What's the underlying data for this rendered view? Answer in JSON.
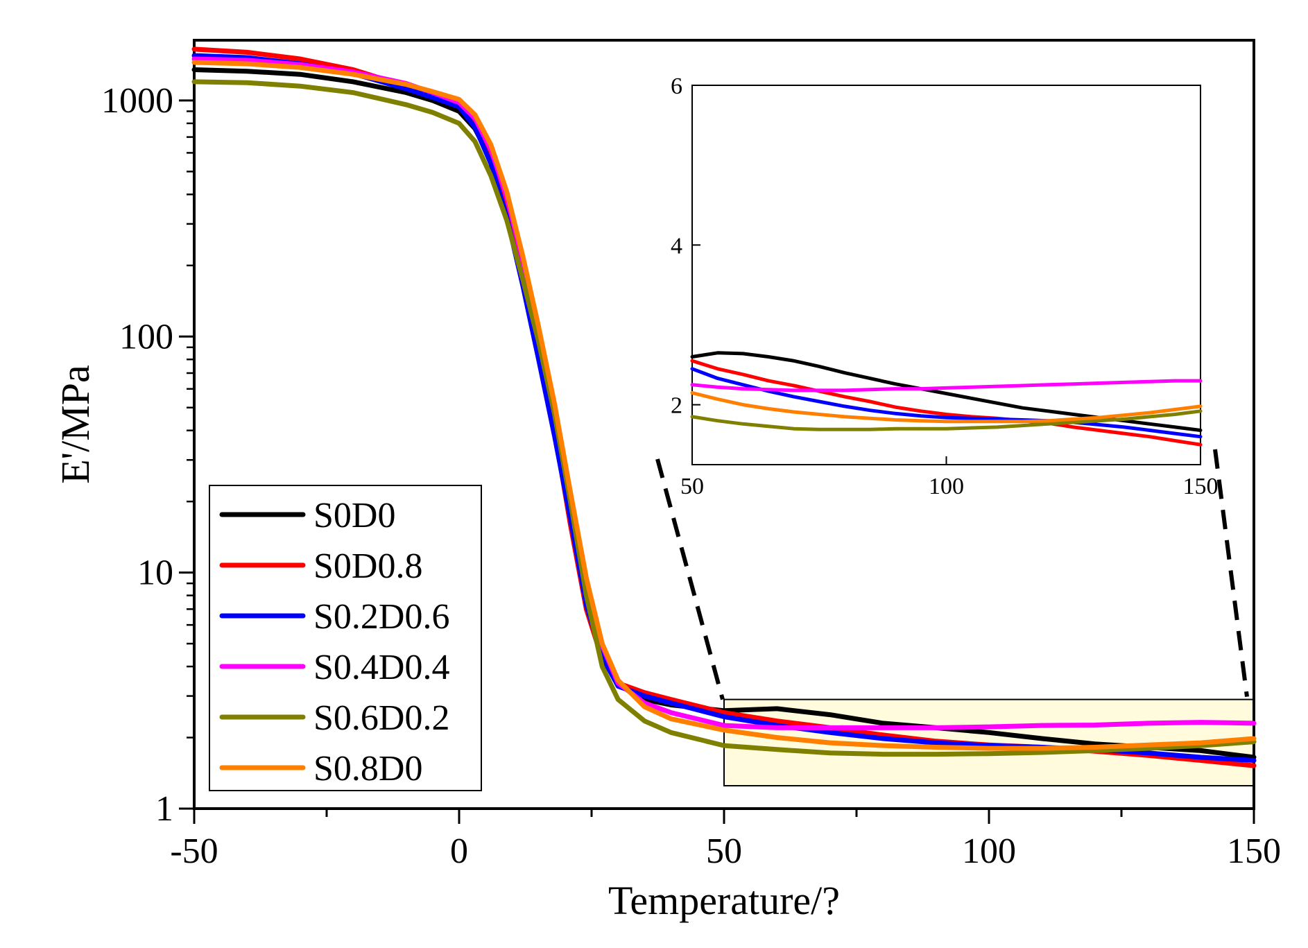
{
  "chart_data": [
    {
      "type": "line",
      "role": "main",
      "xlabel": "Temperature/?",
      "ylabel": "E'/MPa",
      "xlim": [
        -50,
        150
      ],
      "ylim": [
        1,
        1800
      ],
      "yscale": "log",
      "xticks": [
        -50,
        0,
        50,
        100,
        150
      ],
      "xtick_labels": [
        "-50",
        "0",
        "50",
        "100",
        "150"
      ],
      "yticks": [
        1,
        10,
        100,
        1000
      ],
      "ytick_labels": [
        "1",
        "10",
        "100",
        "1000"
      ],
      "legend_position": "bottom-left",
      "zoom_region": {
        "x": [
          50,
          150
        ],
        "y": [
          1.25,
          2.9
        ]
      },
      "x": [
        -50,
        -40,
        -30,
        -20,
        -10,
        -5,
        0,
        3,
        6,
        9,
        12,
        15,
        18,
        21,
        24,
        27,
        30,
        35,
        40,
        50,
        60,
        70,
        80,
        90,
        100,
        110,
        120,
        130,
        140,
        150
      ],
      "series": [
        {
          "name": "S0D0",
          "color": "#000000",
          "values": [
            1350,
            1330,
            1290,
            1200,
            1080,
            1000,
            900,
            760,
            560,
            350,
            190,
            95,
            45,
            20,
            8.5,
            4.6,
            3.4,
            2.9,
            2.75,
            2.6,
            2.65,
            2.5,
            2.3,
            2.2,
            2.1,
            1.98,
            1.88,
            1.82,
            1.76,
            1.65
          ]
        },
        {
          "name": "S0D0.8",
          "color": "#ff0000",
          "values": [
            1650,
            1600,
            1500,
            1350,
            1150,
            1050,
            950,
            800,
            580,
            360,
            190,
            90,
            40,
            16,
            7.0,
            4.3,
            3.4,
            3.1,
            2.9,
            2.55,
            2.35,
            2.2,
            2.05,
            1.93,
            1.86,
            1.82,
            1.75,
            1.68,
            1.6,
            1.52
          ]
        },
        {
          "name": "S0.2D0.6",
          "color": "#0000ff",
          "values": [
            1550,
            1520,
            1430,
            1300,
            1120,
            1030,
            940,
            770,
            540,
            320,
            165,
            80,
            38,
            17,
            7.3,
            4.4,
            3.3,
            3.0,
            2.8,
            2.45,
            2.25,
            2.1,
            1.98,
            1.9,
            1.85,
            1.82,
            1.78,
            1.72,
            1.65,
            1.6
          ]
        },
        {
          "name": "S0.4D0.4",
          "color": "#ff00ff",
          "values": [
            1500,
            1480,
            1420,
            1320,
            1180,
            1080,
            980,
            840,
            620,
            390,
            210,
            105,
            50,
            21,
            9.0,
            4.9,
            3.4,
            2.8,
            2.55,
            2.25,
            2.2,
            2.2,
            2.2,
            2.2,
            2.22,
            2.25,
            2.26,
            2.3,
            2.32,
            2.3
          ]
        },
        {
          "name": "S0.6D0.2",
          "color": "#808000",
          "values": [
            1200,
            1190,
            1150,
            1080,
            960,
            890,
            800,
            670,
            480,
            310,
            175,
            95,
            47,
            20,
            8.0,
            4.0,
            2.9,
            2.35,
            2.1,
            1.85,
            1.78,
            1.72,
            1.7,
            1.7,
            1.71,
            1.73,
            1.76,
            1.8,
            1.85,
            1.92
          ]
        },
        {
          "name": "S0.8D0",
          "color": "#ff8000",
          "values": [
            1450,
            1430,
            1380,
            1290,
            1170,
            1090,
            1010,
            870,
            650,
            410,
            220,
            110,
            52,
            22,
            9.5,
            5.0,
            3.5,
            2.7,
            2.4,
            2.15,
            2.0,
            1.9,
            1.85,
            1.82,
            1.8,
            1.8,
            1.82,
            1.86,
            1.9,
            1.98
          ]
        }
      ]
    },
    {
      "type": "line",
      "role": "inset",
      "xlim": [
        50,
        150
      ],
      "ylim": [
        1.25,
        6
      ],
      "xticks": [
        50,
        100,
        150
      ],
      "xtick_labels": [
        "50",
        "100",
        "150"
      ],
      "yticks": [
        2,
        4,
        6
      ],
      "ytick_labels": [
        "2",
        "4",
        "6"
      ],
      "x": [
        50,
        55,
        60,
        65,
        70,
        75,
        80,
        85,
        90,
        95,
        100,
        105,
        110,
        115,
        120,
        125,
        130,
        135,
        140,
        145,
        150
      ],
      "series": [
        {
          "name": "S0D0",
          "color": "#000000",
          "values": [
            2.6,
            2.65,
            2.64,
            2.6,
            2.55,
            2.48,
            2.4,
            2.33,
            2.26,
            2.2,
            2.14,
            2.08,
            2.02,
            1.96,
            1.92,
            1.88,
            1.84,
            1.8,
            1.76,
            1.72,
            1.68
          ]
        },
        {
          "name": "S0D0.8",
          "color": "#ff0000",
          "values": [
            2.55,
            2.45,
            2.38,
            2.3,
            2.24,
            2.17,
            2.1,
            2.04,
            1.97,
            1.92,
            1.88,
            1.85,
            1.83,
            1.8,
            1.77,
            1.72,
            1.68,
            1.64,
            1.6,
            1.55,
            1.5
          ]
        },
        {
          "name": "S0.2D0.6",
          "color": "#0000ff",
          "values": [
            2.45,
            2.33,
            2.25,
            2.17,
            2.1,
            2.04,
            1.98,
            1.93,
            1.89,
            1.86,
            1.84,
            1.83,
            1.82,
            1.81,
            1.8,
            1.78,
            1.75,
            1.72,
            1.68,
            1.64,
            1.6
          ]
        },
        {
          "name": "S0.4D0.4",
          "color": "#ff00ff",
          "values": [
            2.25,
            2.22,
            2.2,
            2.19,
            2.18,
            2.18,
            2.18,
            2.19,
            2.2,
            2.2,
            2.21,
            2.22,
            2.23,
            2.24,
            2.25,
            2.26,
            2.27,
            2.28,
            2.29,
            2.3,
            2.3
          ]
        },
        {
          "name": "S0.6D0.2",
          "color": "#808000",
          "values": [
            1.85,
            1.8,
            1.76,
            1.73,
            1.7,
            1.69,
            1.69,
            1.69,
            1.7,
            1.7,
            1.7,
            1.71,
            1.72,
            1.74,
            1.76,
            1.78,
            1.8,
            1.82,
            1.85,
            1.88,
            1.92
          ]
        },
        {
          "name": "S0.8D0",
          "color": "#ff8000",
          "values": [
            2.15,
            2.07,
            2.0,
            1.95,
            1.91,
            1.88,
            1.85,
            1.83,
            1.81,
            1.8,
            1.79,
            1.79,
            1.79,
            1.79,
            1.8,
            1.82,
            1.84,
            1.87,
            1.9,
            1.94,
            1.98
          ]
        }
      ]
    }
  ]
}
